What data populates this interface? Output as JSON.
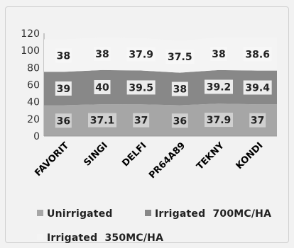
{
  "chart_data": {
    "type": "area",
    "stacked": true,
    "categories": [
      "FAVORIT",
      "SINGI",
      "DELFI",
      "PR64A89",
      "TEKNY",
      "KONDI"
    ],
    "series": [
      {
        "name": "Unirrigated",
        "values": [
          36,
          37.1,
          37,
          36,
          37.9,
          37
        ],
        "color": "#a6a6a6"
      },
      {
        "name": "Irrigated  700MC/HA",
        "values": [
          39,
          40,
          39.5,
          38,
          39.2,
          39.4
        ],
        "color": "#888888"
      },
      {
        "name": "Irrigated  350MC/HA",
        "values": [
          38,
          38,
          37.9,
          37.5,
          38,
          38.6
        ],
        "color": "#f4f4f4"
      }
    ],
    "y_ticks": [
      "0",
      "20",
      "40",
      "60",
      "80",
      "100",
      "120"
    ],
    "ylim": [
      0,
      120
    ],
    "grid": false,
    "legend_position": "bottom",
    "data_labels": [
      [
        "36",
        "37.1",
        "37",
        "36",
        "37.9",
        "37"
      ],
      [
        "39",
        "40",
        "39.5",
        "38",
        "39.2",
        "39.4"
      ],
      [
        "38",
        "38",
        "37.9",
        "37.5",
        "38",
        "38.6"
      ]
    ]
  }
}
